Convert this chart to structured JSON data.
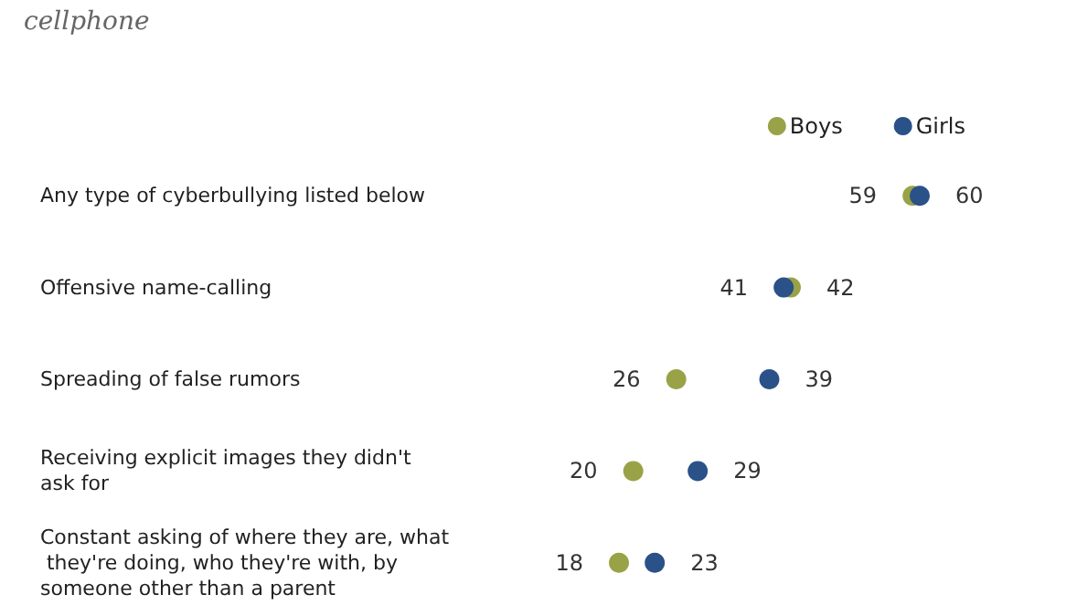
{
  "chart_data": {
    "type": "scatter",
    "subtitle": "cellphone",
    "orientation": "horizontal",
    "data_labels": true,
    "legend": "top right",
    "marker": "circle",
    "grid": false,
    "categories": [
      "Any type of cyberbullying listed below",
      "Offensive name-calling",
      "Spreading of false rumors",
      "Receiving explicit images they didn't ask for",
      "Constant asking of where they are, what they're doing, who they're with, by someone other than a parent"
    ],
    "series": [
      {
        "name": "Boys",
        "color": "#9aa247",
        "values": [
          59,
          42,
          26,
          20,
          18
        ]
      },
      {
        "name": "Girls",
        "color": "#2a5188",
        "values": [
          60,
          41,
          39,
          29,
          23
        ]
      }
    ]
  }
}
